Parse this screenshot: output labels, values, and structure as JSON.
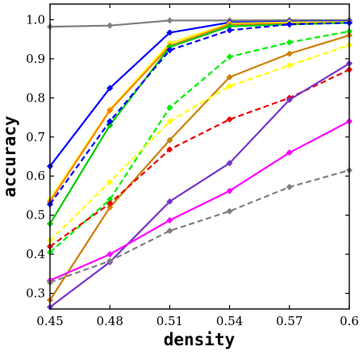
{
  "chart_data": {
    "type": "line",
    "title": "",
    "xlabel": "density",
    "ylabel": "accuracy",
    "xlim": [
      0.45,
      0.6
    ],
    "ylim": [
      0.26,
      1.04
    ],
    "x": [
      0.45,
      0.48,
      0.51,
      0.54,
      0.57,
      0.6
    ],
    "xtick_labels": [
      "0.45",
      "0.48",
      "0.51",
      "0.54",
      "0.57",
      "0.6"
    ],
    "yticks": [
      0.3,
      0.4,
      0.5,
      0.6,
      0.7,
      0.8,
      0.9,
      1.0
    ],
    "ytick_labels": [
      "0.3",
      "0.4",
      "0.5",
      "0.6",
      "0.7",
      "0.8",
      "0.9",
      "1.0"
    ],
    "grid": false,
    "legend": "none",
    "series": [
      {
        "color": "#808080",
        "dash": "solid",
        "values": [
          0.982,
          0.985,
          0.998,
          0.998,
          0.999,
          0.999
        ]
      },
      {
        "color": "#0000ff",
        "dash": "solid",
        "values": [
          0.625,
          0.825,
          0.967,
          0.993,
          0.995,
          0.996
        ]
      },
      {
        "color": "#ffff00",
        "dash": "solid",
        "values": [
          0.54,
          0.77,
          0.94,
          0.99,
          0.993,
          0.994
        ]
      },
      {
        "color": "#ff8000",
        "dash": "solid",
        "values": [
          0.535,
          0.768,
          0.933,
          0.988,
          0.99,
          0.992
        ]
      },
      {
        "color": "#00cc00",
        "dash": "solid",
        "values": [
          0.478,
          0.73,
          0.93,
          0.983,
          0.988,
          0.992
        ]
      },
      {
        "color": "#0000ff",
        "dash": "dashed",
        "values": [
          0.528,
          0.74,
          0.922,
          0.973,
          0.988,
          0.992
        ]
      },
      {
        "color": "#00ee00",
        "dash": "dashed",
        "values": [
          0.405,
          0.54,
          0.775,
          0.905,
          0.942,
          0.97
        ]
      },
      {
        "color": "#cc8000",
        "dash": "solid",
        "values": [
          0.283,
          0.52,
          0.692,
          0.853,
          0.913,
          0.96
        ]
      },
      {
        "color": "#ffff00",
        "dash": "dashed",
        "values": [
          0.435,
          0.585,
          0.74,
          0.83,
          0.883,
          0.935
        ]
      },
      {
        "color": "#ee0000",
        "dash": "dashed",
        "values": [
          0.42,
          0.53,
          0.668,
          0.745,
          0.8,
          0.872
        ]
      },
      {
        "color": "#7733cc",
        "dash": "solid",
        "values": [
          0.265,
          0.38,
          0.535,
          0.633,
          0.795,
          0.888
        ]
      },
      {
        "color": "#ff00ff",
        "dash": "solid",
        "values": [
          0.333,
          0.4,
          0.487,
          0.562,
          0.66,
          0.74
        ]
      },
      {
        "color": "#808080",
        "dash": "dashed",
        "values": [
          0.328,
          0.383,
          0.46,
          0.51,
          0.572,
          0.615
        ]
      }
    ]
  }
}
